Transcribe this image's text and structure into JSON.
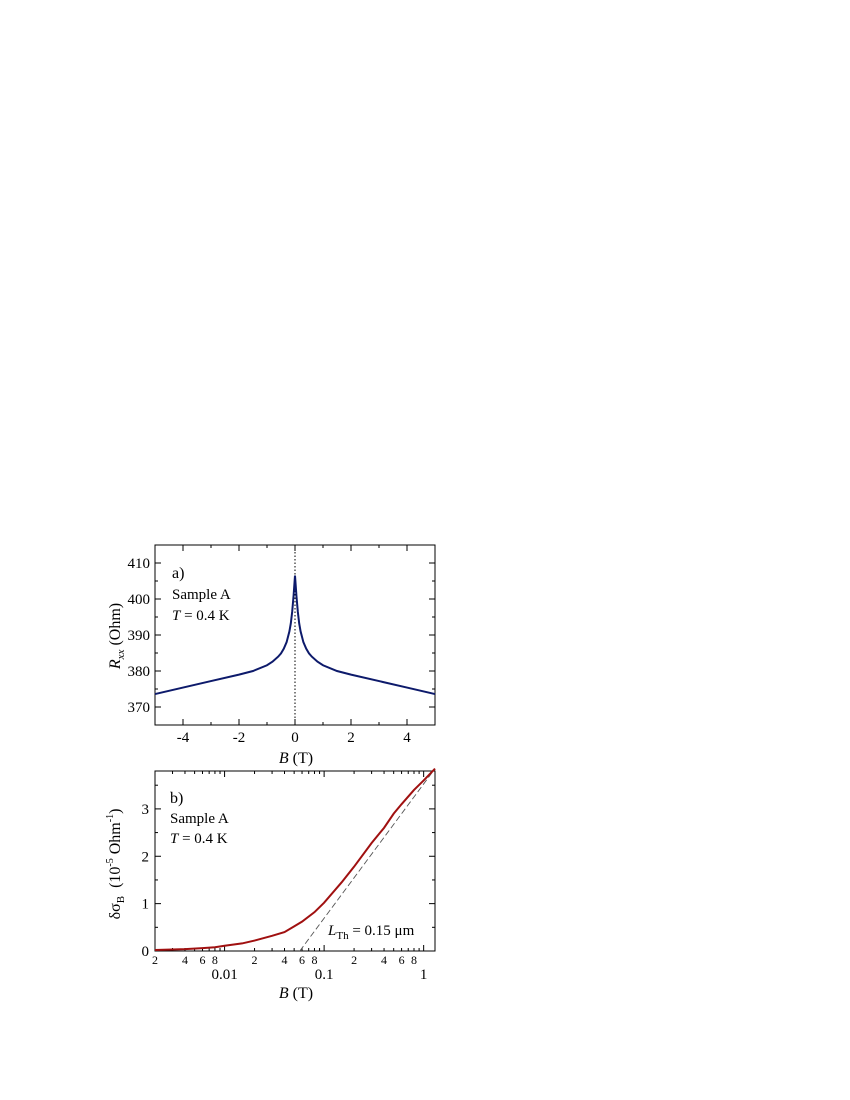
{
  "chart_data": [
    {
      "type": "line",
      "panel_label": "a)",
      "annotations": {
        "sample": "Sample A",
        "temp_var": "T",
        "temp_rest": " = 0.4 K"
      },
      "xlabel": {
        "var": "B",
        "unit": " (T)"
      },
      "ylabel": {
        "var": "R",
        "sub": "xx",
        "unit": " (Ohm)"
      },
      "xlim": [
        -5,
        5
      ],
      "ylim": [
        365,
        415
      ],
      "xticks": [
        -4,
        -2,
        0,
        2,
        4
      ],
      "xtick_labels": [
        "-4",
        "-2",
        "0",
        "2",
        "4"
      ],
      "yticks": [
        370,
        380,
        390,
        400,
        410
      ],
      "ytick_labels": [
        "370",
        "380",
        "390",
        "400",
        "410"
      ],
      "vline_x": 0,
      "colors": {
        "line": "#0d1a6b",
        "vline": "#000000"
      },
      "series": [
        {
          "x": [
            -5,
            -4,
            -3,
            -2,
            -1.5,
            -1,
            -0.8,
            -0.6,
            -0.5,
            -0.4,
            -0.3,
            -0.2,
            -0.15,
            -0.1,
            -0.05,
            0,
            0.05,
            0.1,
            0.15,
            0.2,
            0.3,
            0.4,
            0.5,
            0.6,
            0.8,
            1,
            1.5,
            2,
            3,
            4,
            5
          ],
          "y": [
            373.6,
            375.4,
            377.2,
            379.0,
            380.0,
            381.6,
            382.6,
            384.0,
            384.9,
            386.2,
            388.0,
            391.0,
            393.2,
            396.5,
            401.0,
            406.5,
            401.0,
            396.5,
            393.2,
            391.0,
            388.0,
            386.2,
            384.9,
            384.0,
            382.6,
            381.6,
            380.0,
            379.0,
            377.2,
            375.4,
            373.6
          ]
        }
      ]
    },
    {
      "type": "line",
      "panel_label": "b)",
      "annotations": {
        "sample": "Sample A",
        "temp_var": "T",
        "temp_rest": " = 0.4 K",
        "lth_var": "L",
        "lth_sub": "Th",
        "lth_rest": " = 0.15 μm"
      },
      "xlabel": {
        "var": "B",
        "unit": " (T)"
      },
      "ylabel": {
        "pre": "δσ",
        "sub": "B",
        "unit_pre": "(10",
        "unit_exp": "-5",
        "unit_mid": " Ohm",
        "unit_exp2": "-1",
        "unit_post": ")"
      },
      "xscale": "log",
      "xlim": [
        0.002,
        1.3
      ],
      "ylim": [
        0,
        3.8
      ],
      "xticks_major": [
        0.01,
        0.1,
        1
      ],
      "xtick_labels_major": [
        "0.01",
        "0.1",
        "1"
      ],
      "xticks_minor_labeled": [
        0.002,
        0.004,
        0.006,
        0.008,
        0.02,
        0.04,
        0.06,
        0.08,
        0.2,
        0.4,
        0.6,
        0.8
      ],
      "xtick_labels_minor": [
        "2",
        "4",
        "6",
        "8",
        "2",
        "4",
        "6",
        "8",
        "2",
        "4",
        "6",
        "8"
      ],
      "yticks": [
        0,
        1,
        2,
        3
      ],
      "ytick_labels": [
        "0",
        "1",
        "2",
        "3"
      ],
      "colors": {
        "line": "#a01010",
        "fit": "#555555"
      },
      "series": [
        {
          "x": [
            0.002,
            0.004,
            0.006,
            0.008,
            0.01,
            0.015,
            0.02,
            0.03,
            0.04,
            0.05,
            0.06,
            0.08,
            0.1,
            0.15,
            0.2,
            0.3,
            0.4,
            0.5,
            0.6,
            0.8,
            1.0,
            1.3
          ],
          "y": [
            0.02,
            0.04,
            0.06,
            0.08,
            0.11,
            0.16,
            0.22,
            0.32,
            0.4,
            0.52,
            0.62,
            0.82,
            1.02,
            1.45,
            1.78,
            2.28,
            2.6,
            2.9,
            3.1,
            3.4,
            3.6,
            3.85
          ]
        }
      ],
      "fit_line": {
        "x": [
          0.057,
          1.3
        ],
        "y": [
          0,
          3.85
        ]
      }
    }
  ]
}
